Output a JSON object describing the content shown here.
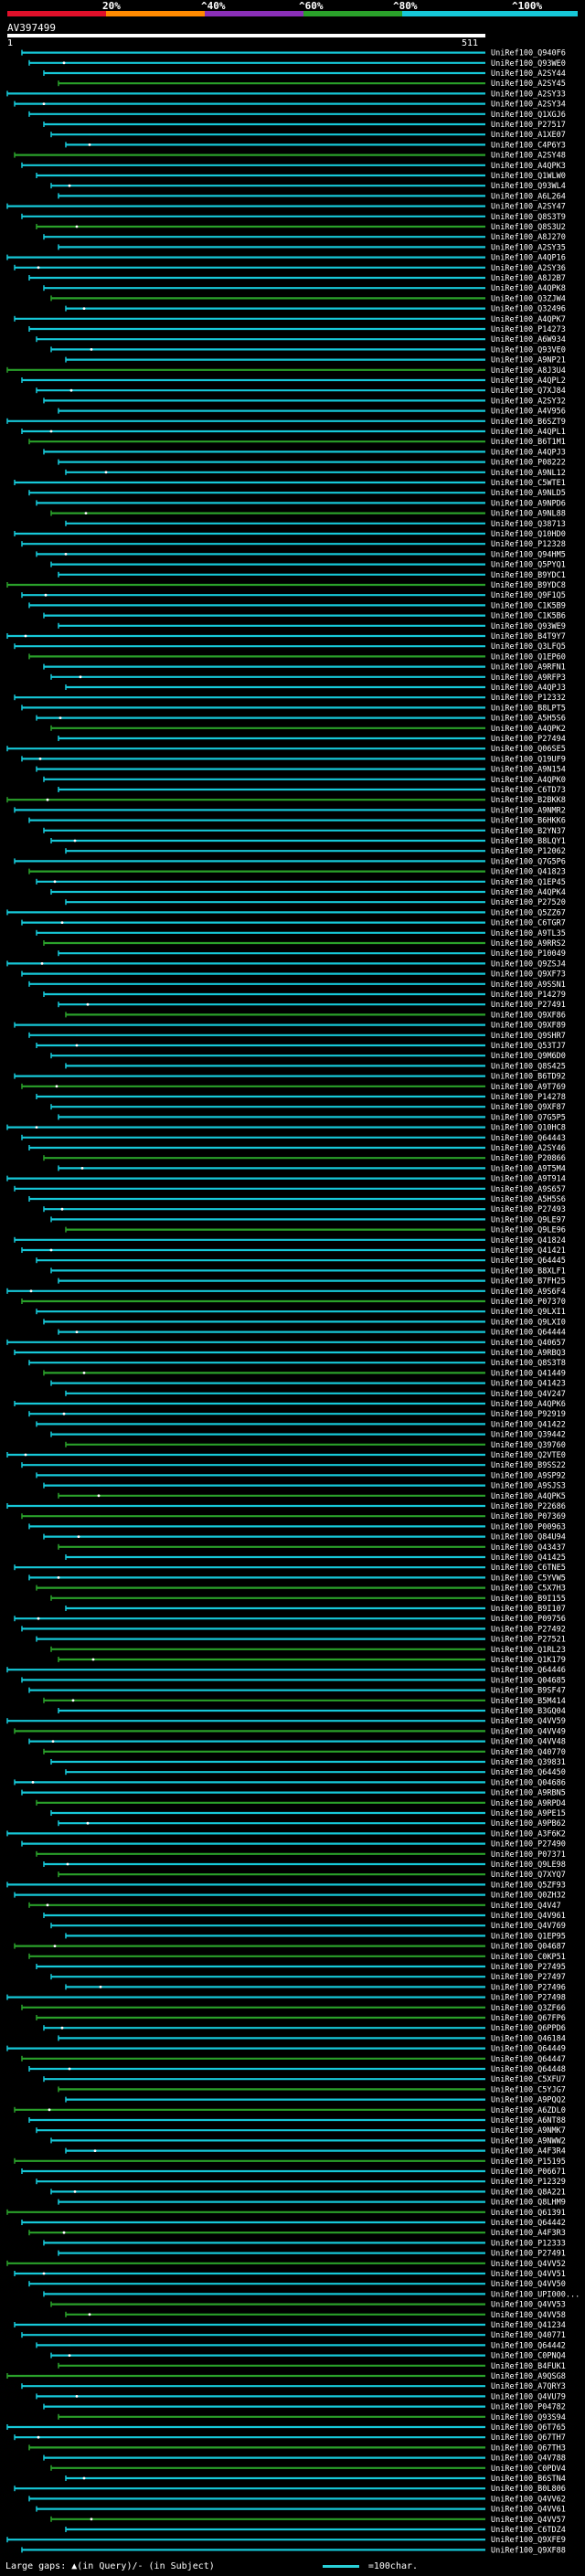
{
  "header": {
    "scale_labels": [
      "20%",
      "^40%",
      "^60%",
      "^80%",
      "^100%"
    ],
    "colors": {
      "red": "#e0102a",
      "orange": "#ff8a00",
      "purple": "#8a2fb8",
      "green": "#2aa12a",
      "cyan": "#16c8d8"
    },
    "query_title": "AV397499",
    "query_start": "1",
    "query_end": "511"
  },
  "hits": [
    "UniRef100_Q940F6",
    "UniRef100_Q93WE0",
    "UniRef100_A2SY44",
    "UniRef100_A2SY45",
    "UniRef100_A2SY33",
    "UniRef100_A2SY34",
    "UniRef100_Q1XGJ6",
    "UniRef100_P27517",
    "UniRef100_A1XE07",
    "UniRef100_C4P6Y3",
    "UniRef100_A2SY48",
    "UniRef100_A4QPK3",
    "UniRef100_Q1WLW0",
    "UniRef100_Q93WL4",
    "UniRef100_A6L264",
    "UniRef100_A2SY47",
    "UniRef100_Q8S3T9",
    "UniRef100_Q8S3U2",
    "UniRef100_A8J270",
    "UniRef100_A2SY35",
    "UniRef100_A4QP16",
    "UniRef100_A2SY36",
    "UniRef100_A8J2B7",
    "UniRef100_A4QPK8",
    "UniRef100_Q3ZJW4",
    "UniRef100_Q32496",
    "UniRef100_A4QPK7",
    "UniRef100_P14273",
    "UniRef100_A6W934",
    "UniRef100_Q93VE0",
    "UniRef100_A9NP21",
    "UniRef100_A8J3U4",
    "UniRef100_A4QPL2",
    "UniRef100_Q7XJ84",
    "UniRef100_A2SY32",
    "UniRef100_A4V956",
    "UniRef100_B6SZT9",
    "UniRef100_A4QPL1",
    "UniRef100_B6T1M1",
    "UniRef100_A4QPJ3",
    "UniRef100_P08222",
    "UniRef100_A9NL12",
    "UniRef100_C5WTE1",
    "UniRef100_A9NLD5",
    "UniRef100_A9NPD6",
    "UniRef100_A9NL88",
    "UniRef100_Q38713",
    "UniRef100_Q10HD0",
    "UniRef100_P12328",
    "UniRef100_Q94HM5",
    "UniRef100_Q5PYQ1",
    "UniRef100_B9YDC1",
    "UniRef100_B9YDC8",
    "UniRef100_Q9F1Q5",
    "UniRef100_C1K5B9",
    "UniRef100_C1K5B6",
    "UniRef100_Q93WE9",
    "UniRef100_B4T9Y7",
    "UniRef100_Q3LFQ5",
    "UniRef100_Q1EP60",
    "UniRef100_A9RFN1",
    "UniRef100_A9RFP3",
    "UniRef100_A4QPJ3",
    "UniRef100_P12332",
    "UniRef100_B8LPT5",
    "UniRef100_A5H5S6",
    "UniRef100_A4QPK2",
    "UniRef100_P27494",
    "UniRef100_Q06SE5",
    "UniRef100_Q19UF9",
    "UniRef100_A9N154",
    "UniRef100_A4QPK0",
    "UniRef100_C6TD73",
    "UniRef100_B2BKK8",
    "UniRef100_A9NMR2",
    "UniRef100_B6HKK6",
    "UniRef100_B2YN37",
    "UniRef100_B8LQY1",
    "UniRef100_P12062",
    "UniRef100_Q7G5P6",
    "UniRef100_Q41823",
    "UniRef100_Q1EP45",
    "UniRef100_A4QPK4",
    "UniRef100_P27520",
    "UniRef100_Q5ZZ67",
    "UniRef100_C6TGR7",
    "UniRef100_A9TL35",
    "UniRef100_A9RRS2",
    "UniRef100_P10049",
    "UniRef100_Q9ZSJ4",
    "UniRef100_Q9XF73",
    "UniRef100_A9SSN1",
    "UniRef100_P14279",
    "UniRef100_P27491",
    "UniRef100_Q9XF86",
    "UniRef100_Q9XF89",
    "UniRef100_Q9SHR7",
    "UniRef100_Q53TJ7",
    "UniRef100_Q9M6D0",
    "UniRef100_Q8S425",
    "UniRef100_B6TD92",
    "UniRef100_A9T769",
    "UniRef100_P14278",
    "UniRef100_Q9XF87",
    "UniRef100_Q7G5P5",
    "UniRef100_Q10HC8",
    "UniRef100_Q64443",
    "UniRef100_A2SY46",
    "UniRef100_P20866",
    "UniRef100_A9T5M4",
    "UniRef100_A9T914",
    "UniRef100_A9S657",
    "UniRef100_A5H5S6",
    "UniRef100_P27493",
    "UniRef100_Q9LE97",
    "UniRef100_Q9LE96",
    "UniRef100_Q41824",
    "UniRef100_Q41421",
    "UniRef100_Q64445",
    "UniRef100_B8XLF1",
    "UniRef100_B7FH25",
    "UniRef100_A9S6F4",
    "UniRef100_P07370",
    "UniRef100_Q9LXI1",
    "UniRef100_Q9LXI0",
    "UniRef100_Q64444",
    "UniRef100_Q40657",
    "UniRef100_A9RBQ3",
    "UniRef100_Q8S3T8",
    "UniRef100_Q41449",
    "UniRef100_Q41423",
    "UniRef100_Q4V247",
    "UniRef100_A4QPK6",
    "UniRef100_P92919",
    "UniRef100_Q41422",
    "UniRef100_Q39442",
    "UniRef100_Q39760",
    "UniRef100_Q2VTE0",
    "UniRef100_B9SS22",
    "UniRef100_A9SP92",
    "UniRef100_A9SJS3",
    "UniRef100_A4QPK5",
    "UniRef100_P22686",
    "UniRef100_P07369",
    "UniRef100_P00963",
    "UniRef100_Q84U94",
    "UniRef100_Q43437",
    "UniRef100_Q41425",
    "UniRef100_C6TNE5",
    "UniRef100_C5YVW5",
    "UniRef100_C5X7H3",
    "UniRef100_B9I155",
    "UniRef100_B9I107",
    "UniRef100_P09756",
    "UniRef100_P27492",
    "UniRef100_P27521",
    "UniRef100_Q1RL23",
    "UniRef100_Q1K179",
    "UniRef100_Q64446",
    "UniRef100_Q04685",
    "UniRef100_B9SF47",
    "UniRef100_B5M414",
    "UniRef100_B3GQ04",
    "UniRef100_Q4VV59",
    "UniRef100_Q4VV49",
    "UniRef100_Q4VV48",
    "UniRef100_Q40770",
    "UniRef100_Q39831",
    "UniRef100_Q64450",
    "UniRef100_Q04686",
    "UniRef100_A9RBN5",
    "UniRef100_A9RPD4",
    "UniRef100_A9PE15",
    "UniRef100_A9PB62",
    "UniRef100_A3F6K2",
    "UniRef100_P27490",
    "UniRef100_P07371",
    "UniRef100_Q9LE98",
    "UniRef100_Q7XYQ7",
    "UniRef100_Q5ZF93",
    "UniRef100_Q0ZH32",
    "UniRef100_Q4V47",
    "UniRef100_Q4V961",
    "UniRef100_Q4V769",
    "UniRef100_Q1EP95",
    "UniRef100_Q04687",
    "UniRef100_C0KP51",
    "UniRef100_P27495",
    "UniRef100_P27497",
    "UniRef100_P27496",
    "UniRef100_P27498",
    "UniRef100_Q3ZF66",
    "UniRef100_Q67FP6",
    "UniRef100_Q6PPD6",
    "UniRef100_Q46184",
    "UniRef100_Q64449",
    "UniRef100_Q64447",
    "UniRef100_Q64448",
    "UniRef100_C5XFU7",
    "UniRef100_C5YJG7",
    "UniRef100_A9PQQ2",
    "UniRef100_A6ZDL0",
    "UniRef100_A6NT88",
    "UniRef100_A9NMK7",
    "UniRef100_A9NWW2",
    "UniRef100_A4F3R4",
    "UniRef100_P15195",
    "UniRef100_P06671",
    "UniRef100_P12329",
    "UniRef100_Q8A221",
    "UniRef100_Q8LHM9",
    "UniRef100_Q61391",
    "UniRef100_Q64442",
    "UniRef100_A4F3R3",
    "UniRef100_P12333",
    "UniRef100_P27491",
    "UniRef100_Q4VV52",
    "UniRef100_Q4VV51",
    "UniRef100_Q4VV50",
    "UniRef100_UPI000...",
    "UniRef100_Q4VV53",
    "UniRef100_Q4VV58",
    "UniRef100_Q41234",
    "UniRef100_Q40771",
    "UniRef100_Q64442",
    "UniRef100_C0PNQ4",
    "UniRef100_B4FUK1",
    "UniRef100_A9QSG8",
    "UniRef100_A7QRY3",
    "UniRef100_Q4VU79",
    "UniRef100_P04782",
    "UniRef100_Q93S94",
    "UniRef100_Q6T765",
    "UniRef100_Q67TH7",
    "UniRef100_Q67TH3",
    "UniRef100_Q4V788",
    "UniRef100_C0PDV4",
    "UniRef100_B6STN4",
    "UniRef100_B0L806",
    "UniRef100_Q4VV62",
    "UniRef100_Q4VV61",
    "UniRef100_Q4VV57",
    "UniRef100_C6TDZ4",
    "UniRef100_Q9XFE9",
    "UniRef100_Q9XF88"
  ],
  "footer": {
    "gaps_label": "Large gaps: ▲(in Query)/- (in Subject)",
    "scale_label": "=100char."
  }
}
